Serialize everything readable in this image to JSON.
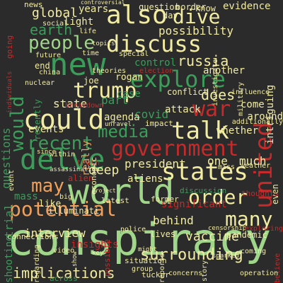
{
  "background": "#2b2b2b",
  "palette": {
    "green": "#3c9c5a",
    "light_green": "#9fd68a",
    "pale_yellow": "#f2eca2",
    "orange": "#f0a05a",
    "red": "#c62a2a",
    "dark_red": "#a7332d"
  },
  "words": [
    {
      "text": "conspiracy",
      "color": "#9fd68a"
    },
    {
      "text": "world",
      "color": "#9fd68a"
    },
    {
      "text": "government",
      "color": "#c62a2a"
    },
    {
      "text": "discuss",
      "color": "#f2eca2"
    },
    {
      "text": "new",
      "color": "#3c9c5a"
    },
    {
      "text": "also",
      "color": "#f2eca2"
    },
    {
      "text": "united",
      "color": "#c62a2a"
    },
    {
      "text": "could",
      "color": "#f2eca2"
    },
    {
      "text": "talk",
      "color": "#f2eca2"
    },
    {
      "text": "explore",
      "color": "#3c9c5a"
    },
    {
      "text": "states",
      "color": "#f2eca2"
    },
    {
      "text": "delve",
      "color": "#3c9c5a"
    },
    {
      "text": "potential",
      "color": "#f0a05a"
    },
    {
      "text": "trump",
      "color": "#f2eca2"
    },
    {
      "text": "recent",
      "color": "#3c9c5a"
    },
    {
      "text": "people",
      "color": "#9fd68a"
    },
    {
      "text": "dive",
      "color": "#f2eca2"
    },
    {
      "text": "war",
      "color": "#c62a2a"
    },
    {
      "text": "order",
      "color": "#f2eca2"
    },
    {
      "text": "many",
      "color": "#f2eca2"
    },
    {
      "text": "media",
      "color": "#3c9c5a"
    },
    {
      "text": "may",
      "color": "#f0a05a"
    },
    {
      "text": "surrounding",
      "color": "#f2eca2"
    },
    {
      "text": "implications",
      "color": "#f2eca2"
    },
    {
      "text": "would",
      "color": "#3c9c5a"
    },
    {
      "text": "russia",
      "color": "#f2eca2"
    },
    {
      "text": "earth",
      "color": "#3c9c5a"
    },
    {
      "text": "possibility",
      "color": "#f2eca2"
    },
    {
      "text": "vaccine",
      "color": "#f2eca2"
    },
    {
      "text": "interview",
      "color": "#f2eca2"
    },
    {
      "text": "behind",
      "color": "#f2eca2"
    },
    {
      "text": "deep",
      "color": "#f2eca2"
    },
    {
      "text": "president",
      "color": "#f2eca2"
    },
    {
      "text": "state",
      "color": "#f2eca2"
    },
    {
      "text": "does",
      "color": "#f2eca2"
    },
    {
      "text": "global",
      "color": "#f2eca2"
    },
    {
      "text": "events",
      "color": "#f2eca2"
    },
    {
      "text": "intriguing",
      "color": "#f2eca2"
    },
    {
      "text": "control",
      "color": "#3c9c5a"
    },
    {
      "text": "questions",
      "color": "#3c9c5a"
    },
    {
      "text": "one",
      "color": "#f2eca2"
    },
    {
      "text": "much",
      "color": "#f2eca2"
    },
    {
      "text": "evidence",
      "color": "#f2eca2"
    },
    {
      "text": "like",
      "color": "#f2eca2"
    },
    {
      "text": "trial",
      "color": "#3c9c5a"
    },
    {
      "text": "insights",
      "color": "#c62a2a"
    },
    {
      "text": "discussion",
      "color": "#3c9c5a"
    },
    {
      "text": "aliens",
      "color": "#f2eca2"
    },
    {
      "text": "significant",
      "color": "#c62a2a"
    },
    {
      "text": "covid",
      "color": "#3c9c5a"
    },
    {
      "text": "agenda",
      "color": "#f2eca2"
    },
    {
      "text": "part",
      "color": "#3c9c5a"
    },
    {
      "text": "around",
      "color": "#f2eca2"
    },
    {
      "text": "whether",
      "color": "#f2eca2"
    },
    {
      "text": "shooting",
      "color": "#3c9c5a"
    },
    {
      "text": "mass",
      "color": "#3c9c5a"
    },
    {
      "text": "another",
      "color": "#f2eca2"
    },
    {
      "text": "attack",
      "color": "#f2eca2"
    },
    {
      "text": "come",
      "color": "#f2eca2"
    },
    {
      "text": "really",
      "color": "#f0a05a"
    },
    {
      "text": "years",
      "color": "#f2eca2"
    },
    {
      "text": "question",
      "color": "#f2eca2"
    },
    {
      "text": "light",
      "color": "#f2eca2"
    },
    {
      "text": "joe",
      "color": "#f2eca2"
    },
    {
      "text": "rogan",
      "color": "#f2eca2"
    },
    {
      "text": "case",
      "color": "#3c9c5a"
    },
    {
      "text": "end",
      "color": "#f2eca2"
    },
    {
      "text": "recently",
      "color": "#3c9c5a"
    },
    {
      "text": "day",
      "color": "#f2eca2"
    },
    {
      "text": "know",
      "color": "#f2eca2"
    },
    {
      "text": "border",
      "color": "#f2eca2"
    },
    {
      "text": "lives",
      "color": "#f2eca2"
    },
    {
      "text": "pandemic",
      "color": "#f2eca2"
    },
    {
      "text": "even",
      "color": "#f2eca2"
    },
    {
      "text": "alien",
      "color": "#c62a2a"
    },
    {
      "text": "illuminati",
      "color": "#f2eca2"
    },
    {
      "text": "truth",
      "color": "#a7332d"
    },
    {
      "text": "conflict",
      "color": "#f2eca2"
    },
    {
      "text": "impact",
      "color": "#f2eca2"
    },
    {
      "text": "latest",
      "color": "#f2eca2"
    },
    {
      "text": "former",
      "color": "#f2eca2"
    },
    {
      "text": "economic",
      "color": "#f2eca2"
    },
    {
      "text": "connections",
      "color": "#f2eca2"
    },
    {
      "text": "news",
      "color": "#f2eca2"
    },
    {
      "text": "social",
      "color": "#f2eca2"
    },
    {
      "text": "going",
      "color": "#c62a2a"
    },
    {
      "text": "theories",
      "color": "#f2eca2"
    },
    {
      "text": "election",
      "color": "#c62a2a"
    },
    {
      "text": "special",
      "color": "#f2eca2"
    },
    {
      "text": "breakdown",
      "color": "#c62a2a"
    },
    {
      "text": "future",
      "color": "#f2eca2"
    },
    {
      "text": "time",
      "color": "#f2eca2"
    },
    {
      "text": "china",
      "color": "#f2eca2"
    },
    {
      "text": "nuclear",
      "color": "#f2eca2"
    },
    {
      "text": "miss",
      "color": "#f2eca2"
    },
    {
      "text": "weather",
      "color": "#f2eca2"
    },
    {
      "text": "coming",
      "color": "#f2eca2"
    },
    {
      "text": "believe",
      "color": "#c62a2a"
    },
    {
      "text": "across",
      "color": "#3c9c5a"
    },
    {
      "text": "tucker",
      "color": "#f2eca2"
    },
    {
      "text": "situation",
      "color": "#f2eca2"
    },
    {
      "text": "group",
      "color": "#f2eca2"
    },
    {
      "text": "concerns",
      "color": "#f2eca2"
    },
    {
      "text": "video",
      "color": "#f2eca2"
    },
    {
      "text": "regarding",
      "color": "#f2eca2"
    },
    {
      "text": "event",
      "color": "#f2eca2"
    },
    {
      "text": "within",
      "color": "#f2eca2"
    },
    {
      "text": "since",
      "color": "#f2eca2"
    },
    {
      "text": "big",
      "color": "#f2eca2"
    },
    {
      "text": "police",
      "color": "#f2eca2"
    },
    {
      "text": "sparked",
      "color": "#f2eca2"
    },
    {
      "text": "thoughts",
      "color": "#c62a2a"
    },
    {
      "text": "additionally",
      "color": "#f2eca2"
    },
    {
      "text": "investigate",
      "color": "#f2eca2"
    },
    {
      "text": "influence",
      "color": "#f2eca2"
    },
    {
      "text": "military",
      "color": "#f2eca2"
    },
    {
      "text": "topics",
      "color": "#f2eca2"
    },
    {
      "text": "controversial",
      "color": "#f2eca2"
    },
    {
      "text": "individuals",
      "color": "#c62a2a"
    },
    {
      "text": "reports",
      "color": "#f2eca2"
    },
    {
      "text": "operation",
      "color": "#f2eca2"
    },
    {
      "text": "story",
      "color": "#f2eca2"
    },
    {
      "text": "censorship",
      "color": "#f2eca2"
    },
    {
      "text": "exploring",
      "color": "#c62a2a"
    },
    {
      "text": "unravel",
      "color": "#f2eca2"
    },
    {
      "text": "assassination",
      "color": "#f2eca2"
    },
    {
      "text": "life",
      "color": "#f2eca2"
    },
    {
      "text": "project",
      "color": "#f2eca2"
    },
    {
      "text": "might",
      "color": "#f2eca2"
    },
    {
      "text": "key",
      "color": "#f2eca2"
    },
    {
      "text": "show",
      "color": "#f2eca2"
    },
    {
      "text": "possible",
      "color": "#c62a2a"
    }
  ]
}
